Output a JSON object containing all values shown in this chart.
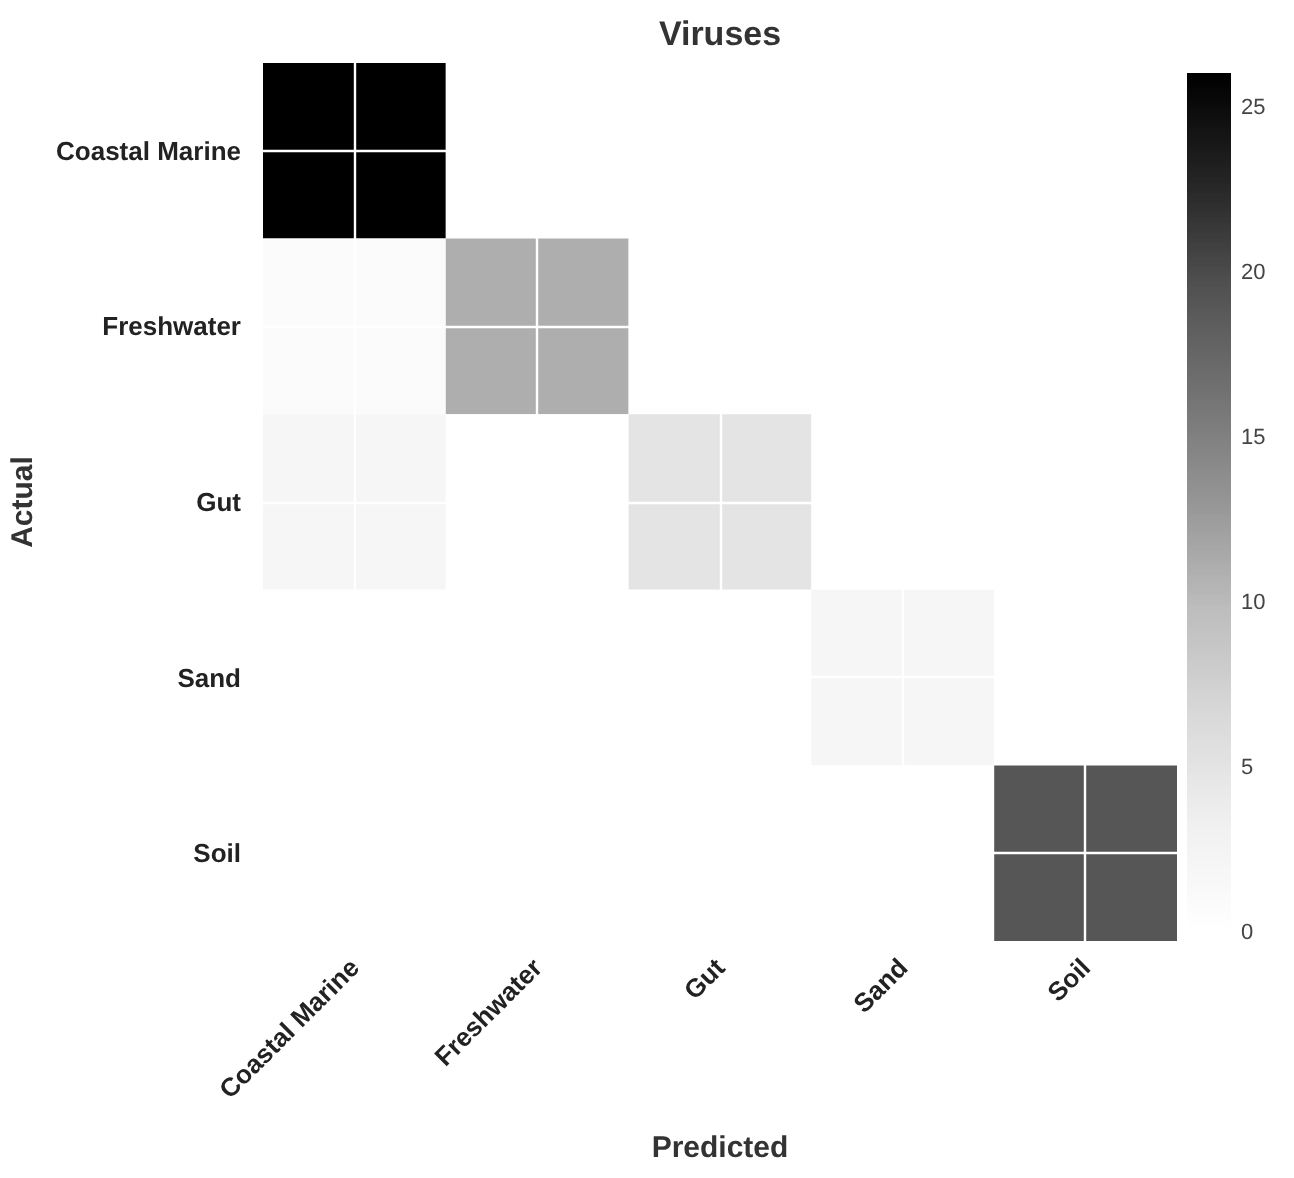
{
  "chart_data": {
    "type": "heatmap",
    "title": "Viruses",
    "xlabel": "Predicted",
    "ylabel": "Actual",
    "categories": [
      "Coastal Marine",
      "Freshwater",
      "Gut",
      "Sand",
      "Soil"
    ],
    "y_categories": [
      "Coastal Marine",
      "Freshwater",
      "Gut",
      "Sand",
      "Soil"
    ],
    "cells": [
      [
        26,
        0,
        0,
        0,
        0
      ],
      [
        1,
        11,
        0,
        0,
        0
      ],
      [
        2,
        0,
        5,
        0,
        0
      ],
      [
        0,
        0,
        0,
        2,
        0
      ],
      [
        0,
        0,
        0,
        0,
        19
      ]
    ],
    "clim": [
      0,
      26
    ],
    "cticks": [
      0,
      5,
      10,
      15,
      20,
      25
    ],
    "grid": true
  }
}
